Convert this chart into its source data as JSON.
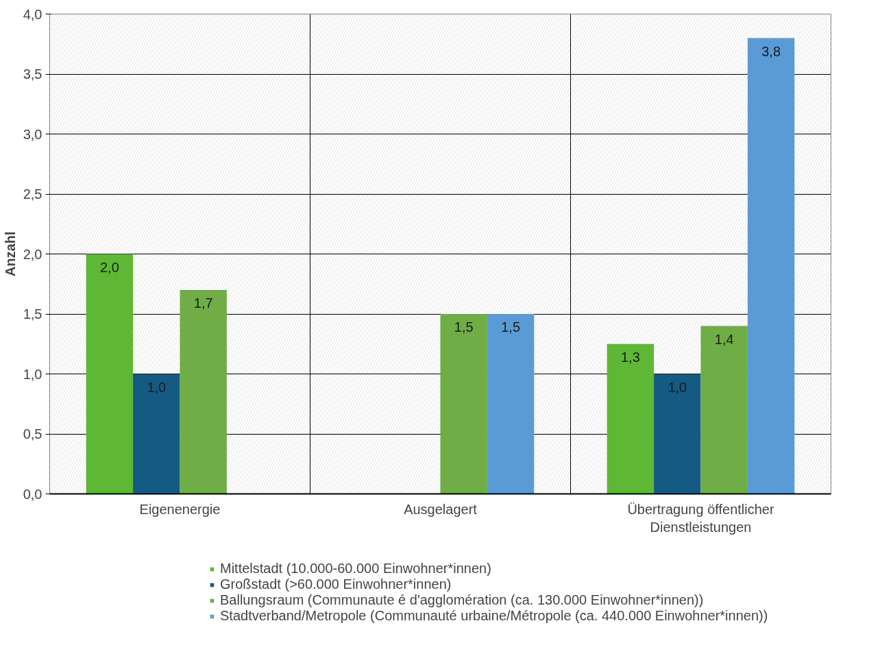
{
  "chart_data": {
    "type": "bar",
    "ylabel": "Anzahl",
    "categories": [
      "Eigenenergie",
      "Ausgelagert",
      "Übertragung öffentlicher\nDienstleistungen"
    ],
    "series": [
      {
        "name": "Mittelstadt (10.000-60.000 Einwohner*innen)",
        "color": "#5eb735",
        "values": [
          2.0,
          null,
          1.25
        ],
        "value_labels": [
          "2,0",
          null,
          "1,3"
        ]
      },
      {
        "name": "Großstadt (>60.000 Einwohner*innen)",
        "color": "#145a82",
        "values": [
          1.0,
          null,
          1.0
        ],
        "value_labels": [
          "1,0",
          null,
          "1,0"
        ]
      },
      {
        "name": "Ballungsraum (Communaute é d'agglomération (ca. 130.000 Einwohner*innen))",
        "color": "#70ad47",
        "values": [
          1.7,
          1.5,
          1.4
        ],
        "value_labels": [
          "1,7",
          "1,5",
          "1,4"
        ]
      },
      {
        "name": "Stadtverband/Metropole (Communauté urbaine/Métropole (ca. 440.000 Einwohner*innen))",
        "color": "#5b9bd5",
        "values": [
          null,
          1.5,
          3.8
        ],
        "value_labels": [
          null,
          "1,5",
          "3,8"
        ]
      }
    ],
    "ylim": [
      0,
      4.0
    ],
    "yticks": [
      {
        "value": 0,
        "label": "0,0"
      },
      {
        "value": 0.5,
        "label": "0,5"
      },
      {
        "value": 1.0,
        "label": "1,0"
      },
      {
        "value": 1.5,
        "label": "1,5"
      },
      {
        "value": 2.0,
        "label": "2,0"
      },
      {
        "value": 2.5,
        "label": "2,5"
      },
      {
        "value": 3.0,
        "label": "3,0"
      },
      {
        "value": 3.5,
        "label": "3,5"
      },
      {
        "value": 4.0,
        "label": "4,0"
      }
    ],
    "grid": true,
    "legend": "bottom"
  }
}
